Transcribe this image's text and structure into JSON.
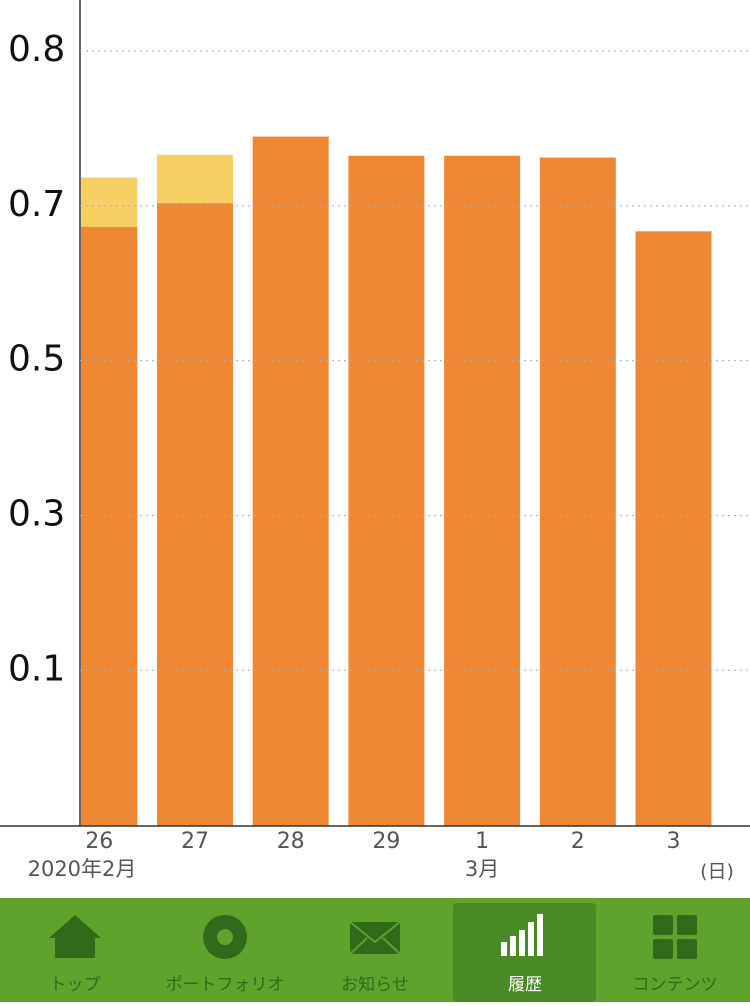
{
  "chart_data": {
    "type": "stacked-bar",
    "categories": [
      "26",
      "27",
      "28",
      "29",
      "1",
      "2",
      "3"
    ],
    "month_labels": [
      "2020年2月",
      null,
      null,
      null,
      "3月",
      null,
      null
    ],
    "x_unit": "(日)",
    "series": [
      {
        "color": "#ee8834",
        "values": [
          0.658,
          0.684,
          0.757,
          0.736,
          0.736,
          0.734,
          0.653
        ]
      },
      {
        "color": "#f6cf65",
        "values": [
          0.054,
          0.053,
          0,
          0,
          0,
          0,
          0
        ]
      }
    ],
    "ylim": [
      -0.026,
      0.881
    ],
    "yticks": [
      {
        "value": 0.145,
        "label": "0.1"
      },
      {
        "value": 0.315,
        "label": "0.3"
      },
      {
        "value": 0.485,
        "label": "0.5"
      },
      {
        "value": 0.655,
        "label": "0.7"
      },
      {
        "value": 0.825,
        "label": "0.8"
      }
    ],
    "grid": true
  },
  "nav": {
    "items": [
      "トップ",
      "ポートフォリオ",
      "お知らせ",
      "履歴",
      "コンテンツ"
    ],
    "active": 3
  }
}
